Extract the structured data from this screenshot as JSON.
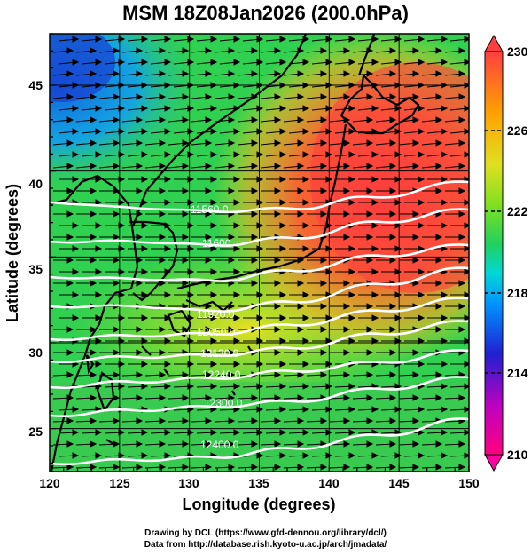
{
  "title": "MSM 18Z08Jan2026 (200.0hPa)",
  "map": {
    "lon_range": [
      120,
      150
    ],
    "lat_range": [
      22.5,
      48
    ],
    "xlabel": "Longitude (degrees)",
    "ylabel": "Latitude  (degrees)",
    "x_ticks": [
      "120",
      "125",
      "130",
      "135",
      "140",
      "145",
      "150"
    ],
    "y_ticks": [
      "25",
      "30",
      "35",
      "40",
      "45"
    ],
    "gridlines": true,
    "shaded_field_range": [
      210,
      230
    ],
    "colorbar": {
      "ticks": [
        "230",
        "226",
        "222",
        "218",
        "214",
        "210"
      ],
      "colors": [
        "#ff0080",
        "#c000c0",
        "#2020d0",
        "#0090ff",
        "#00d8d8",
        "#20d060",
        "#80e020",
        "#e0e020",
        "#ffa000",
        "#ff4040"
      ]
    },
    "contour_color": "#ffffff",
    "contour_labels": [
      "11560.0",
      "11600",
      "11920.0",
      "12050.0",
      "12130.0",
      "12240.0",
      "12300.0",
      "12400.0"
    ],
    "wind_vectors": "eastward (westerly jet)"
  },
  "credits": {
    "line1": "Drawing by DCL (https://www.gfd-dennou.org/library/dcl/)",
    "line2": "Data from http://database.rish.kyoto-u.ac.jp/arch/jmadata/"
  }
}
